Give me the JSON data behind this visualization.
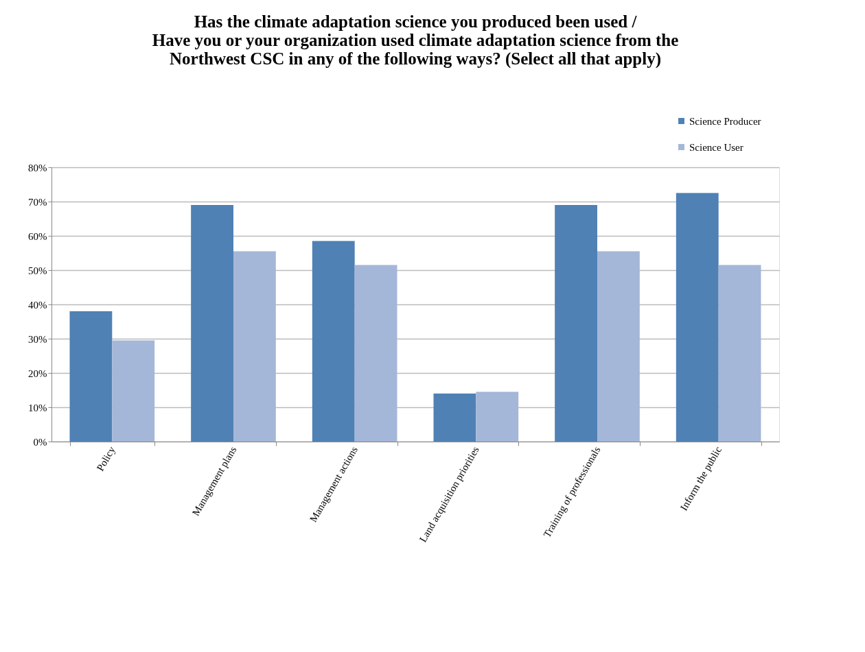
{
  "chart_data": {
    "type": "bar",
    "title": "Has the climate adaptation science you produced been used /\nHave you or your organization used climate adaptation science from the\nNorthwest CSC in any of the following ways? (Select all that apply)",
    "categories": [
      "Policy",
      "Management plans",
      "Management actions",
      "Land acquisition priorities",
      "Training of professionals",
      "Inform the public"
    ],
    "series": [
      {
        "name": "Science Producer",
        "color": "#4f81b5",
        "values": [
          38,
          69,
          58.5,
          14,
          69,
          72.5
        ]
      },
      {
        "name": "Science User",
        "color": "#a5b7d8",
        "values": [
          29.5,
          55.5,
          51.5,
          14.5,
          55.5,
          51.5
        ]
      }
    ],
    "ylim": [
      0,
      80
    ],
    "yticks": [
      {
        "value": 0,
        "label": "0%"
      },
      {
        "value": 10,
        "label": "10%"
      },
      {
        "value": 20,
        "label": "20%"
      },
      {
        "value": 30,
        "label": "30%"
      },
      {
        "value": 40,
        "label": "40%"
      },
      {
        "value": 50,
        "label": "50%"
      },
      {
        "value": 60,
        "label": "60%"
      },
      {
        "value": 70,
        "label": "70%"
      },
      {
        "value": 80,
        "label": "80%"
      }
    ],
    "grid": "y",
    "legend": "top right"
  }
}
